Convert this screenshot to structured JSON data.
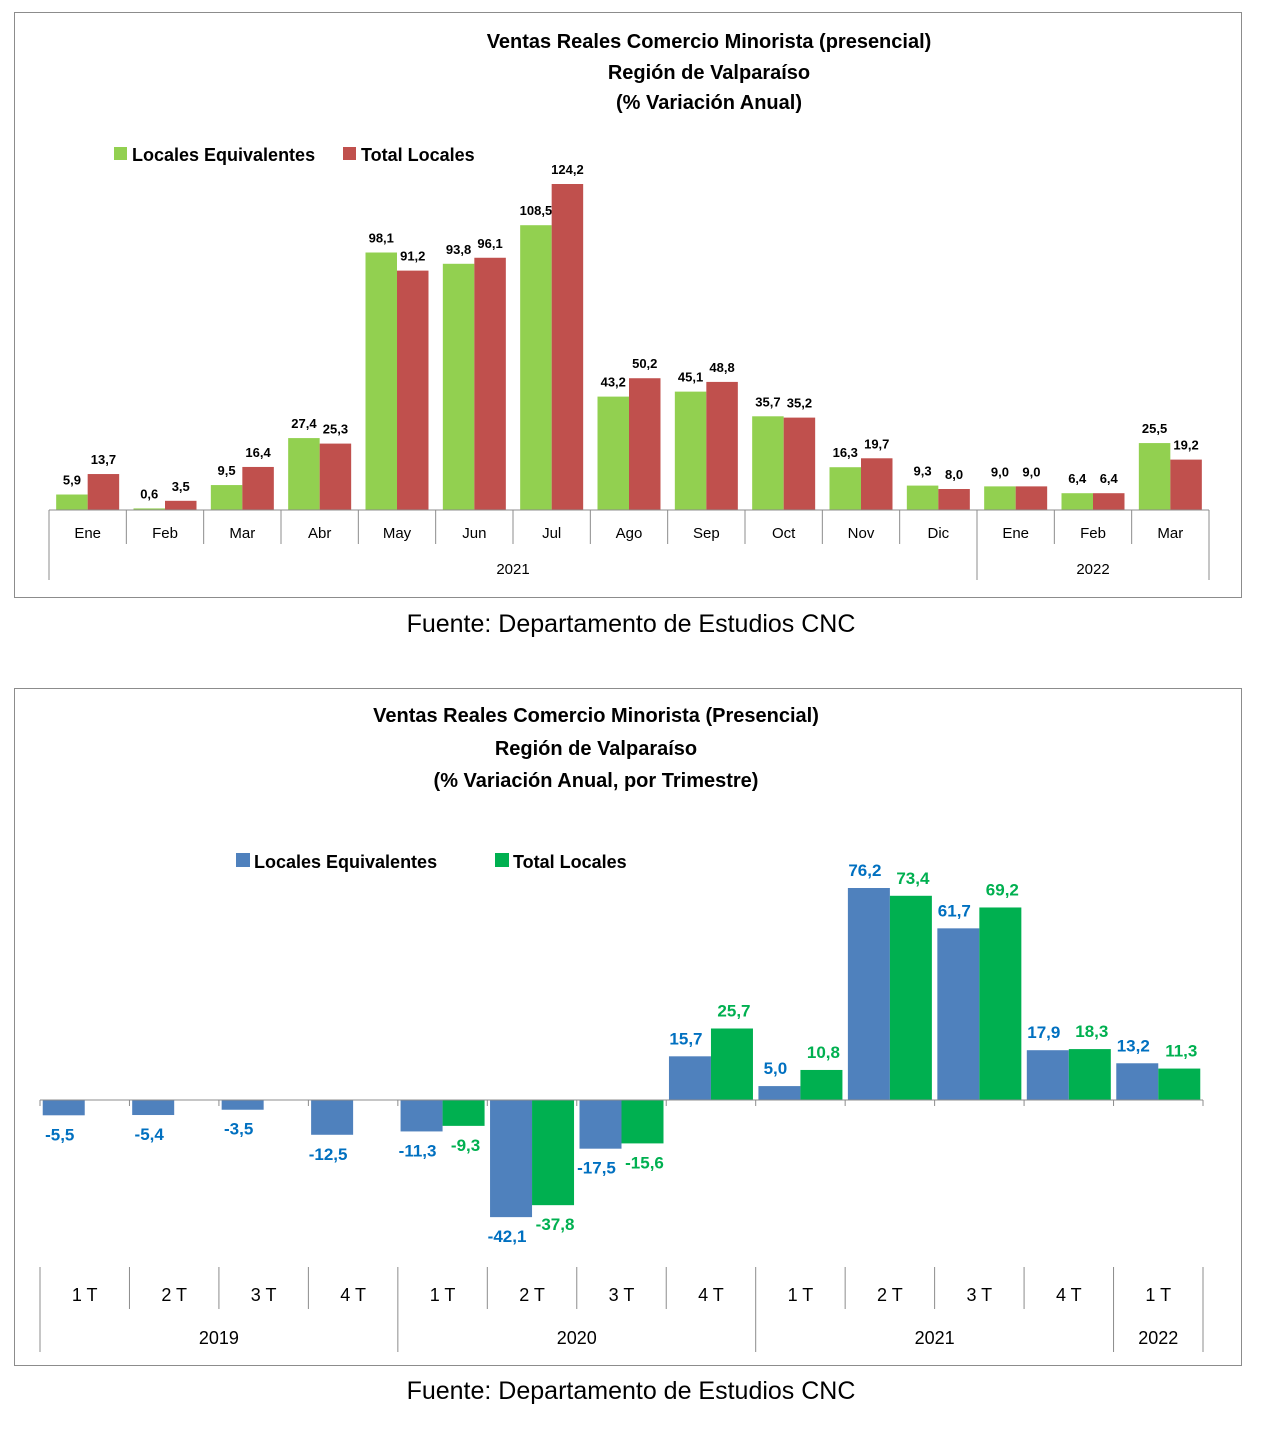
{
  "chart_data": [
    {
      "type": "bar",
      "title": "Ventas Reales Comercio Minorista (presencial)",
      "subtitle": "Región de Valparaíso",
      "subtitle2": "(% Variación Anual)",
      "categories": [
        "Ene",
        "Feb",
        "Mar",
        "Abr",
        "May",
        "Jun",
        "Jul",
        "Ago",
        "Sep",
        "Oct",
        "Nov",
        "Dic",
        "Ene",
        "Feb",
        "Mar"
      ],
      "groups": [
        {
          "label": "2021",
          "count": 12
        },
        {
          "label": "2022",
          "count": 3
        }
      ],
      "series": [
        {
          "name": "Locales Equivalentes",
          "color": "#92d050",
          "values": [
            5.9,
            0.6,
            9.5,
            27.4,
            98.1,
            93.8,
            108.5,
            43.2,
            45.1,
            35.7,
            16.3,
            9.3,
            9.0,
            6.4,
            25.5
          ],
          "labels": [
            "5,9",
            "0,6",
            "9,5",
            "27,4",
            "98,1",
            "93,8",
            "108,5",
            "43,2",
            "45,1",
            "35,7",
            "16,3",
            "9,3",
            "9,0",
            "6,4",
            "25,5"
          ]
        },
        {
          "name": "Total Locales",
          "color": "#c0504d",
          "values": [
            13.7,
            3.5,
            16.4,
            25.3,
            91.2,
            96.1,
            124.2,
            50.2,
            48.8,
            35.2,
            19.7,
            8.0,
            9.0,
            6.4,
            19.2
          ],
          "labels": [
            "13,7",
            "3,5",
            "16,4",
            "25,3",
            "91,2",
            "96,1",
            "124,2",
            "50,2",
            "48,8",
            "35,2",
            "19,7",
            "8,0",
            "9,0",
            "6,4",
            "19,2"
          ]
        }
      ],
      "legend_position": "top-left",
      "grid": false,
      "ylim": [
        0,
        130
      ],
      "label_color": "#000000"
    },
    {
      "type": "bar",
      "title": "Ventas Reales Comercio Minorista (Presencial)",
      "subtitle": "Región de Valparaíso",
      "subtitle2": "(% Variación Anual, por Trimestre)",
      "categories": [
        "1 T",
        "2 T",
        "3 T",
        "4 T",
        "1 T",
        "2 T",
        "3 T",
        "4 T",
        "1 T",
        "2 T",
        "3 T",
        "4 T",
        "1 T"
      ],
      "groups": [
        {
          "label": "2019",
          "count": 4
        },
        {
          "label": "2020",
          "count": 4
        },
        {
          "label": "2021",
          "count": 4
        },
        {
          "label": "2022",
          "count": 1
        }
      ],
      "series": [
        {
          "name": "Locales Equivalentes",
          "color": "#4f81bd",
          "label_color": "#0070c0",
          "values": [
            -5.5,
            -5.4,
            -3.5,
            -12.5,
            -11.3,
            -42.1,
            -17.5,
            15.7,
            5.0,
            76.2,
            61.7,
            17.9,
            13.2
          ],
          "labels": [
            "-5,5",
            "-5,4",
            "-3,5",
            "-12,5",
            "-11,3",
            "-42,1",
            "-17,5",
            "15,7",
            "5,0",
            "76,2",
            "61,7",
            "17,9",
            "13,2"
          ]
        },
        {
          "name": "Total Locales",
          "color": "#00b050",
          "label_color": "#00b050",
          "values": [
            null,
            null,
            null,
            null,
            -9.3,
            -37.8,
            -15.6,
            25.7,
            10.8,
            73.4,
            69.2,
            18.3,
            11.3
          ],
          "labels": [
            null,
            null,
            null,
            null,
            "-9,3",
            "-37,8",
            "-15,6",
            "25,7",
            "10,8",
            "73,4",
            "69,2",
            "18,3",
            "11,3"
          ]
        }
      ],
      "legend_position": "top-left",
      "grid": false,
      "ylim": [
        -50,
        85
      ]
    }
  ],
  "sources": [
    "Fuente: Departamento de Estudios CNC",
    "Fuente: Departamento de Estudios CNC"
  ]
}
